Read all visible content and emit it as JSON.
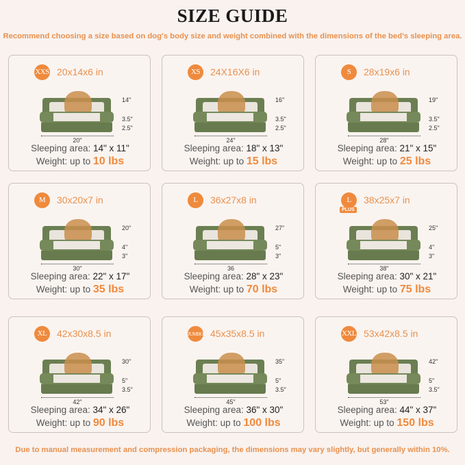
{
  "title": "SIZE GUIDE",
  "subtitle": "Recommend choosing a size based on dog's body size and weight combined with the dimensions of the bed's sleeping area.",
  "footer": "Due to manual measurement and compression packaging, the dimensions may vary slightly, but generally within 10%.",
  "sleeping_label": "Sleeping area: ",
  "weight_label": "Weight: up to ",
  "colors": {
    "accent": "#ef8a3d",
    "bed_green": "#6b7f52",
    "background": "#f9f2ee"
  },
  "sizes": [
    {
      "badge": "XXS",
      "dims": "20x14x6 in",
      "height": "14\"",
      "top": "3.5\"",
      "base": "2.5\"",
      "width": "20\"",
      "sleeping": "14\" x 11\"",
      "weight": "10 lbs"
    },
    {
      "badge": "XS",
      "dims": "24X16X6 in",
      "height": "16\"",
      "top": "3.5\"",
      "base": "2.5\"",
      "width": "24\"",
      "sleeping": "18\" x 13\"",
      "weight": "15 lbs"
    },
    {
      "badge": "S",
      "dims": "28x19x6 in",
      "height": "19\"",
      "top": "3.5\"",
      "base": "2.5\"",
      "width": "28\"",
      "sleeping": "21\" x 15\"",
      "weight": "25 lbs"
    },
    {
      "badge": "M",
      "dims": "30x20x7 in",
      "height": "20\"",
      "top": "4\"",
      "base": "3\"",
      "width": "30\"",
      "sleeping": "22\" x 17\"",
      "weight": "35 lbs"
    },
    {
      "badge": "L",
      "dims": "36x27x8 in",
      "height": "27\"",
      "top": "5\"",
      "base": "3\"",
      "width": "36",
      "sleeping": "28\" x 23\"",
      "weight": "70 lbs"
    },
    {
      "badge": "L",
      "plus": "PLUS",
      "dims": "38x25x7 in",
      "height": "25\"",
      "top": "4\"",
      "base": "3\"",
      "width": "38\"",
      "sleeping": "30\" x 21\"",
      "weight": "75 lbs"
    },
    {
      "badge": "XL",
      "dims": "42x30x8.5 in",
      "height": "30\"",
      "top": "5\"",
      "base": "3.5\"",
      "width": "42\"",
      "sleeping": "34\" x 26\"",
      "weight": "90 lbs"
    },
    {
      "badge": "JUMBO",
      "dims": "45x35x8.5 in",
      "height": "35\"",
      "top": "5\"",
      "base": "3.5\"",
      "width": "45\"",
      "sleeping": "36\" x 30\"",
      "weight": "100 lbs"
    },
    {
      "badge": "XXL",
      "dims": "53x42x8.5 in",
      "height": "42\"",
      "top": "5\"",
      "base": "3.5\"",
      "width": "53\"",
      "sleeping": "44\" x 37\"",
      "weight": "150 lbs"
    }
  ]
}
